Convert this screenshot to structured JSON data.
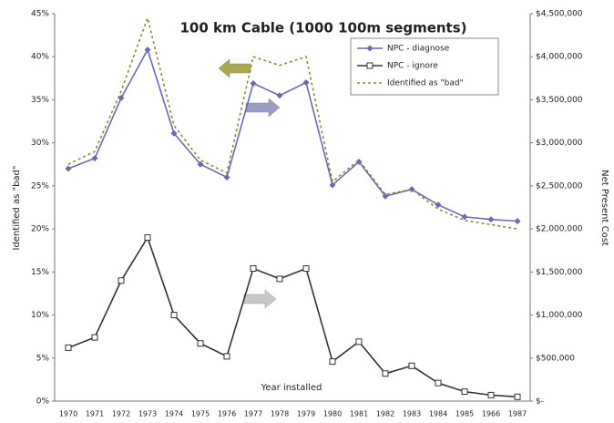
{
  "chart_data": {
    "type": "line",
    "title": "100 km Cable (1000 100m segments)",
    "x_label": "Year installed",
    "y_label": "Identified as \"bad\"",
    "y2_label": "Net Present Cost",
    "categories": [
      "1970",
      "1971",
      "1972",
      "1973",
      "1974",
      "1975",
      "1976",
      "1977",
      "1978",
      "1979",
      "1980",
      "1981",
      "1982",
      "1983",
      "1984",
      "1985",
      "1966",
      "1987"
    ],
    "ylim": [
      0,
      45
    ],
    "yticks": [
      {
        "value": 0,
        "label": "0%"
      },
      {
        "value": 5,
        "label": "5%"
      },
      {
        "value": 10,
        "label": "10%"
      },
      {
        "value": 15,
        "label": "15%"
      },
      {
        "value": 20,
        "label": "20%"
      },
      {
        "value": 25,
        "label": "25%"
      },
      {
        "value": 30,
        "label": "30%"
      },
      {
        "value": 35,
        "label": "35%"
      },
      {
        "value": 40,
        "label": "40%"
      },
      {
        "value": 45,
        "label": "45%"
      }
    ],
    "y2lim": [
      0,
      4500000
    ],
    "y2ticks": [
      {
        "value": 0,
        "label": "$-"
      },
      {
        "value": 500000,
        "label": "$500,000"
      },
      {
        "value": 1000000,
        "label": "$1,000,000"
      },
      {
        "value": 1500000,
        "label": "$1,500,000"
      },
      {
        "value": 2000000,
        "label": "$2,000,000"
      },
      {
        "value": 2500000,
        "label": "$2,500,000"
      },
      {
        "value": 3000000,
        "label": "$3,000,000"
      },
      {
        "value": 3500000,
        "label": "$3,500,000"
      },
      {
        "value": 4000000,
        "label": "$4,000,000"
      },
      {
        "value": 4500000,
        "label": "$4,500,000"
      }
    ],
    "grid": false,
    "legend": "top-right",
    "series": [
      {
        "name": "NPC - diagnose",
        "color": "#6a6ab0",
        "axis": "y2",
        "marker": "diamond",
        "dash": false,
        "values": [
          2700000,
          2820000,
          3520000,
          4080000,
          3110000,
          2750000,
          2600000,
          3690000,
          3550000,
          3700000,
          2510000,
          2780000,
          2380000,
          2460000,
          2280000,
          2140000,
          2110000,
          2090000
        ]
      },
      {
        "name": "NPC - ignore",
        "color": "#333333",
        "axis": "y2",
        "marker": "square",
        "dash": false,
        "values": [
          620000,
          740000,
          1400000,
          1900000,
          1000000,
          670000,
          520000,
          1540000,
          1420000,
          1540000,
          460000,
          690000,
          320000,
          410000,
          210000,
          110000,
          70000,
          50000
        ]
      },
      {
        "name": "Identified as \"bad\"",
        "color": "#8a8a3a",
        "axis": "y",
        "marker": "none",
        "dash": true,
        "values": [
          27.5,
          29,
          36,
          44.5,
          32,
          28,
          26.5,
          40,
          39,
          40,
          25.5,
          28,
          24,
          24.6,
          22.3,
          21,
          20.5,
          20
        ]
      }
    ]
  }
}
